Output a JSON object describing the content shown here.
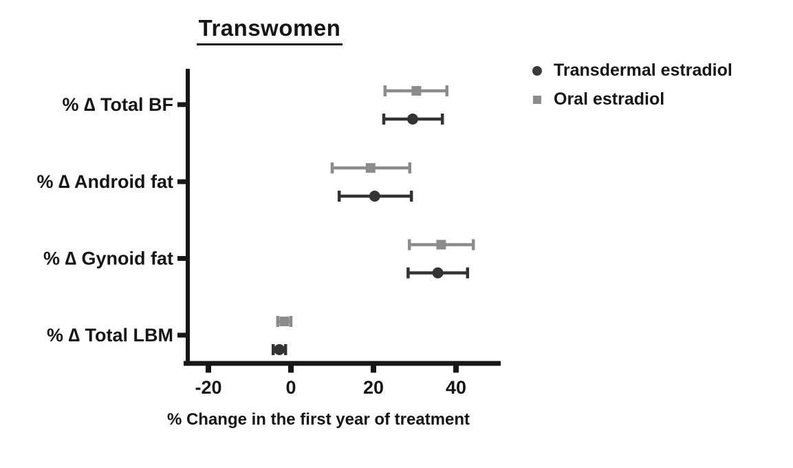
{
  "title": "Transwomen",
  "legend": [
    {
      "label": "Transdermal estradiol",
      "marker": "circle",
      "color": "#3a3a3a"
    },
    {
      "label": "Oral estradiol",
      "marker": "square",
      "color": "#8c8c8c"
    }
  ],
  "chart_data": {
    "type": "scatter",
    "subtype": "horizontal-dot-plot-with-error-bars",
    "title": "Transwomen",
    "xlabel": "% Change in the first year of treatment",
    "categories": [
      "% ∆ Total BF",
      "% ∆ Android fat",
      "% ∆ Gynoid fat",
      "% ∆ Total LBM"
    ],
    "xticks": [
      -20,
      0,
      20,
      40
    ],
    "xlim": [
      -26,
      51
    ],
    "grid": false,
    "legend_position": "top-right",
    "axis_color": "#161616",
    "series": [
      {
        "name": "Transdermal estradiol",
        "marker": "circle",
        "color": "#333333",
        "values": [
          {
            "category": "% ∆ Total BF",
            "mean": 29.5,
            "lo": 22.5,
            "hi": 36.7
          },
          {
            "category": "% ∆ Android fat",
            "mean": 20.3,
            "lo": 11.7,
            "hi": 29.2
          },
          {
            "category": "% ∆ Gynoid fat",
            "mean": 35.6,
            "lo": 28.4,
            "hi": 42.8
          },
          {
            "category": "% ∆ Total LBM",
            "mean": -2.8,
            "lo": -4.3,
            "hi": -1.3
          }
        ]
      },
      {
        "name": "Oral estradiol",
        "marker": "square",
        "color": "#8c8c8c",
        "values": [
          {
            "category": "% ∆ Total BF",
            "mean": 30.4,
            "lo": 22.8,
            "hi": 37.8
          },
          {
            "category": "% ∆ Android fat",
            "mean": 19.3,
            "lo": 10.0,
            "hi": 28.8
          },
          {
            "category": "% ∆ Gynoid fat",
            "mean": 36.4,
            "lo": 28.7,
            "hi": 44.2
          },
          {
            "category": "% ∆ Total LBM",
            "mean": -1.6,
            "lo": -3.2,
            "hi": 0.0
          }
        ]
      }
    ]
  }
}
